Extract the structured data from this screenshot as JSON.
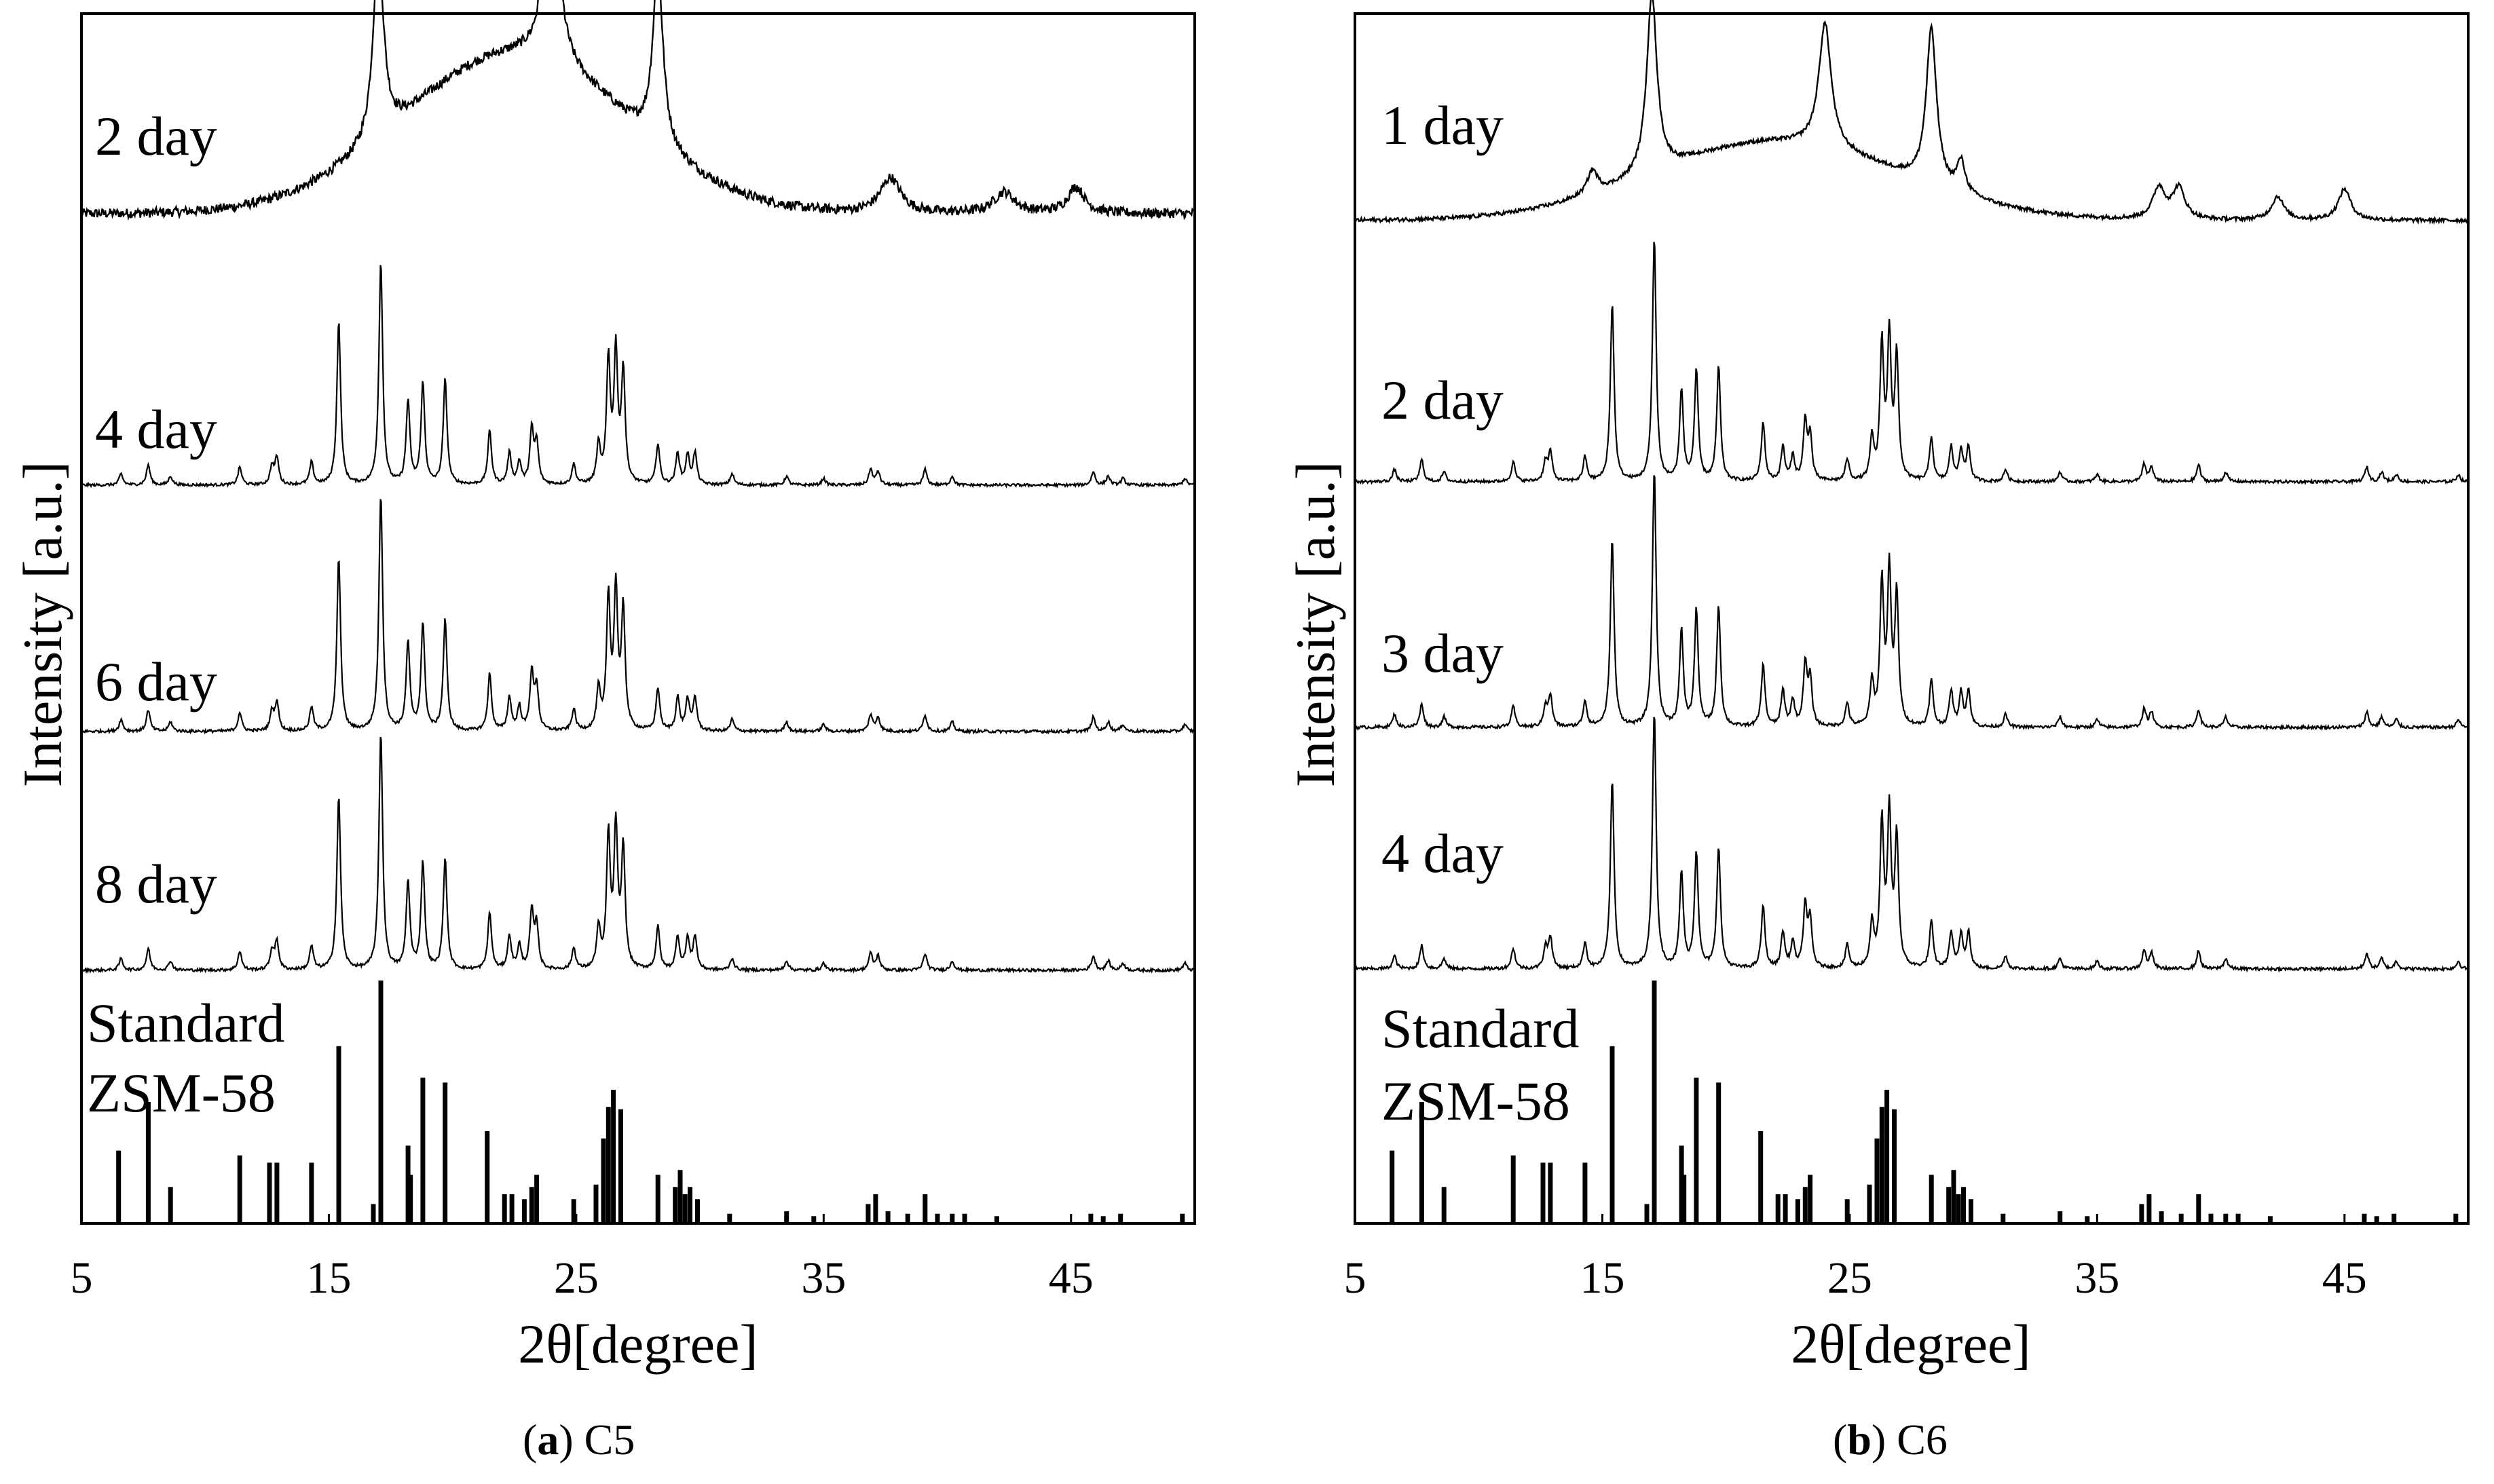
{
  "chart_data": [
    {
      "type": "line",
      "panel": "a",
      "caption_letter": "a",
      "caption_name": "C5",
      "xlabel": "2θ[degree]",
      "ylabel": "Intensity [a.u.]",
      "xlim": [
        5,
        50
      ],
      "xticks": [
        "5",
        "15",
        "25",
        "35",
        "45"
      ],
      "xtick_values": [
        5,
        15,
        25,
        35,
        45
      ],
      "series": [
        {
          "name": "2 day",
          "label": "2 day",
          "kind": "amorphous",
          "noise": 0.55,
          "hump": {
            "center": 22.5,
            "width": 4.5,
            "height": 0.9
          },
          "peaks": [
            [
              17.0,
              1.1,
              0.25
            ],
            [
              24.0,
              1.3,
              0.3
            ],
            [
              28.3,
              1.0,
              0.25
            ],
            [
              37.7,
              0.2,
              0.5
            ],
            [
              42.3,
              0.12,
              0.5
            ],
            [
              45.2,
              0.15,
              0.4
            ]
          ]
        },
        {
          "name": "4 day",
          "label": "4 day",
          "kind": "crystalline",
          "noise": 0.12
        },
        {
          "name": "6 day",
          "label": "6 day",
          "kind": "crystalline",
          "noise": 0.12
        },
        {
          "name": "8 day",
          "label": "8 day",
          "kind": "crystalline",
          "noise": 0.12
        }
      ],
      "standard": {
        "label_line1": "Standard",
        "label_line2": "ZSM-58"
      }
    },
    {
      "type": "line",
      "panel": "b",
      "caption_letter": "b",
      "caption_name": "C6",
      "xlabel": "2θ[degree]",
      "ylabel": "Intensity [a.u.]",
      "xlim": [
        5,
        50
      ],
      "xticks": [
        "5",
        "15",
        "25",
        "35",
        "45"
      ],
      "xtick_values": [
        5,
        15,
        25,
        35,
        45
      ],
      "series": [
        {
          "name": "1 day",
          "label": "1 day",
          "kind": "amorphous",
          "noise": 0.25,
          "hump": {
            "center": 22.0,
            "width": 5.0,
            "height": 0.5
          },
          "peaks": [
            [
              14.6,
              0.15,
              0.25
            ],
            [
              17.0,
              1.15,
              0.25
            ],
            [
              24.0,
              0.8,
              0.3
            ],
            [
              28.3,
              1.0,
              0.25
            ],
            [
              29.5,
              0.2,
              0.2
            ],
            [
              37.5,
              0.2,
              0.3
            ],
            [
              38.3,
              0.2,
              0.3
            ],
            [
              42.3,
              0.15,
              0.3
            ],
            [
              45.0,
              0.2,
              0.3
            ]
          ]
        },
        {
          "name": "2 day",
          "label": "2 day",
          "kind": "crystalline",
          "noise": 0.12
        },
        {
          "name": "3 day",
          "label": "3 day",
          "kind": "crystalline",
          "noise": 0.12
        },
        {
          "name": "4 day",
          "label": "4 day",
          "kind": "crystalline",
          "noise": 0.12
        }
      ],
      "standard": {
        "label_line1": "Standard",
        "label_line2": "ZSM-58"
      }
    }
  ],
  "crystalline_peaks": [
    [
      6.6,
      0.05
    ],
    [
      7.7,
      0.09
    ],
    [
      8.6,
      0.04
    ],
    [
      11.4,
      0.08
    ],
    [
      12.7,
      0.08
    ],
    [
      12.9,
      0.12
    ],
    [
      14.3,
      0.1
    ],
    [
      15.4,
      0.73
    ],
    [
      17.1,
      1.0
    ],
    [
      18.2,
      0.37
    ],
    [
      18.8,
      0.45
    ],
    [
      19.7,
      0.47
    ],
    [
      21.5,
      0.24
    ],
    [
      22.3,
      0.14
    ],
    [
      22.7,
      0.1
    ],
    [
      23.2,
      0.24
    ],
    [
      23.4,
      0.18
    ],
    [
      24.9,
      0.09
    ],
    [
      25.9,
      0.17
    ],
    [
      26.3,
      0.55
    ],
    [
      26.6,
      0.58
    ],
    [
      26.9,
      0.5
    ],
    [
      28.3,
      0.18
    ],
    [
      29.1,
      0.14
    ],
    [
      29.5,
      0.13
    ],
    [
      29.8,
      0.14
    ],
    [
      31.3,
      0.05
    ],
    [
      33.5,
      0.04
    ],
    [
      35.0,
      0.03
    ],
    [
      36.9,
      0.07
    ],
    [
      37.2,
      0.06
    ],
    [
      39.1,
      0.07
    ],
    [
      40.2,
      0.04
    ],
    [
      45.9,
      0.06
    ],
    [
      46.5,
      0.04
    ],
    [
      47.1,
      0.03
    ],
    [
      49.6,
      0.03
    ]
  ],
  "standard_sticks": [
    [
      6.5,
      0.3
    ],
    [
      7.7,
      0.5
    ],
    [
      8.6,
      0.15
    ],
    [
      11.4,
      0.28
    ],
    [
      12.6,
      0.25
    ],
    [
      12.9,
      0.25
    ],
    [
      14.3,
      0.25
    ],
    [
      15.4,
      0.73
    ],
    [
      16.8,
      0.08
    ],
    [
      17.1,
      1.0
    ],
    [
      18.2,
      0.32
    ],
    [
      18.3,
      0.2
    ],
    [
      18.8,
      0.6
    ],
    [
      19.7,
      0.58
    ],
    [
      21.4,
      0.38
    ],
    [
      22.1,
      0.12
    ],
    [
      22.4,
      0.12
    ],
    [
      22.9,
      0.1
    ],
    [
      23.2,
      0.15
    ],
    [
      23.4,
      0.2
    ],
    [
      24.9,
      0.1
    ],
    [
      25.8,
      0.16
    ],
    [
      26.1,
      0.35
    ],
    [
      26.3,
      0.48
    ],
    [
      26.5,
      0.55
    ],
    [
      26.8,
      0.47
    ],
    [
      28.3,
      0.2
    ],
    [
      29.0,
      0.15
    ],
    [
      29.2,
      0.22
    ],
    [
      29.4,
      0.12
    ],
    [
      29.6,
      0.15
    ],
    [
      29.9,
      0.1
    ],
    [
      31.2,
      0.04
    ],
    [
      33.5,
      0.05
    ],
    [
      34.6,
      0.03
    ],
    [
      36.8,
      0.08
    ],
    [
      37.1,
      0.12
    ],
    [
      37.6,
      0.05
    ],
    [
      38.4,
      0.04
    ],
    [
      39.1,
      0.12
    ],
    [
      39.6,
      0.04
    ],
    [
      40.2,
      0.04
    ],
    [
      40.7,
      0.04
    ],
    [
      42.0,
      0.03
    ],
    [
      45.8,
      0.04
    ],
    [
      46.3,
      0.03
    ],
    [
      47.0,
      0.04
    ],
    [
      49.5,
      0.04
    ]
  ]
}
